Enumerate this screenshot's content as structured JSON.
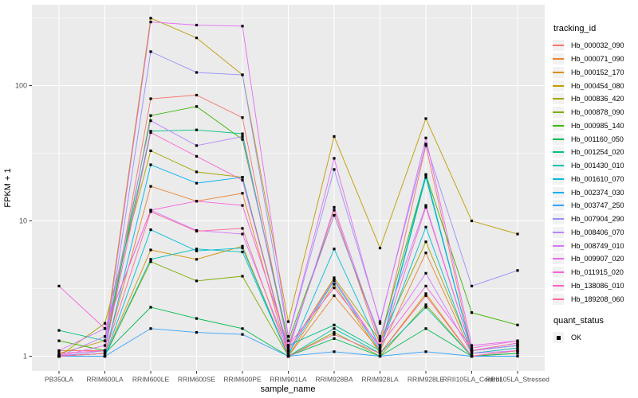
{
  "chart_data": {
    "type": "line",
    "title": "",
    "xlabel": "sample_name",
    "ylabel": "FPKM + 1",
    "x_categories": [
      "PB350LA",
      "RRIM600LA",
      "RRIM600LE",
      "RRIM600SE",
      "RRIM600PE",
      "RRIM901LA",
      "RRIM928BA",
      "RRIM928LA",
      "RRIM928LE",
      "RRII105LA_Control",
      "RRII105LA_Stressed"
    ],
    "y_scale": "log10",
    "y_ticks": [
      1,
      10,
      100
    ],
    "ylim": [
      0.95,
      380
    ],
    "grid": "on",
    "panel_bg": "#EBEBEB",
    "grid_color": "#FFFFFF",
    "tick_label_color": "#4D4D4D",
    "axis_title_color": "#000000",
    "point_shape": "filled-square",
    "point_color": "#000000",
    "legend_position": "right",
    "legend_title": "tracking_id",
    "legend2": {
      "title": "quant_status",
      "items": [
        "OK"
      ]
    },
    "series": [
      {
        "name": "Hb_000032_090",
        "color": "#F8766D",
        "values": [
          1.1,
          1.1,
          80,
          85,
          58,
          1.15,
          12,
          1.2,
          36,
          1.1,
          1.2
        ]
      },
      {
        "name": "Hb_000071_090",
        "color": "#EA8331",
        "values": [
          1.0,
          1.05,
          18,
          14,
          16,
          1.0,
          2.8,
          1.1,
          5.8,
          1.05,
          1.15
        ]
      },
      {
        "name": "Hb_000152_170",
        "color": "#D89000",
        "values": [
          1.0,
          1.0,
          6.1,
          5.2,
          6.5,
          1.0,
          3.4,
          1.05,
          2.9,
          1.0,
          1.1
        ]
      },
      {
        "name": "Hb_000454_080",
        "color": "#C09B00",
        "values": [
          1.05,
          1.3,
          315,
          225,
          120,
          1.8,
          42,
          6.3,
          57,
          10,
          8
        ]
      },
      {
        "name": "Hb_000836_420",
        "color": "#A3A500",
        "values": [
          1.0,
          1.75,
          33,
          23,
          21,
          1.1,
          3.8,
          1.3,
          7,
          1.1,
          1.25
        ]
      },
      {
        "name": "Hb_000878_090",
        "color": "#7CAE00",
        "values": [
          1.0,
          1.0,
          5.0,
          3.6,
          3.9,
          1.0,
          1.5,
          1.0,
          2.4,
          1.0,
          1.05
        ]
      },
      {
        "name": "Hb_000985_140",
        "color": "#39B600",
        "values": [
          1.3,
          1.1,
          60,
          70,
          40,
          1.3,
          11,
          1.35,
          22,
          2.1,
          1.7
        ]
      },
      {
        "name": "Hb_001160_050",
        "color": "#00BB4E",
        "values": [
          1.0,
          1.05,
          2.3,
          1.9,
          1.6,
          1.0,
          1.35,
          1.0,
          1.6,
          1.0,
          1.05
        ]
      },
      {
        "name": "Hb_001254_020",
        "color": "#00C087",
        "values": [
          1.55,
          1.3,
          46,
          47,
          44,
          1.2,
          1.7,
          1.1,
          21,
          1.1,
          1.2
        ]
      },
      {
        "name": "Hb_001430_010",
        "color": "#00C0B2",
        "values": [
          1.0,
          1.0,
          5.2,
          6.2,
          5.9,
          1.0,
          1.6,
          1.05,
          2.3,
          1.0,
          1.1
        ]
      },
      {
        "name": "Hb_001610_070",
        "color": "#00BCD8",
        "values": [
          1.0,
          1.0,
          8.6,
          6.0,
          6.3,
          1.0,
          6.2,
          1.15,
          9.0,
          1.05,
          1.15
        ]
      },
      {
        "name": "Hb_002374_030",
        "color": "#00B0F6",
        "values": [
          1.0,
          1.0,
          26,
          19,
          21,
          1.05,
          3.6,
          1.1,
          22,
          1.1,
          1.2
        ]
      },
      {
        "name": "Hb_003747_250",
        "color": "#35A2FF",
        "values": [
          1.0,
          1.0,
          1.6,
          1.5,
          1.45,
          1.0,
          1.08,
          1.0,
          1.08,
          1.0,
          1.0
        ]
      },
      {
        "name": "Hb_007904_290",
        "color": "#9590FF",
        "values": [
          1.0,
          1.1,
          178,
          125,
          120,
          1.4,
          24,
          1.8,
          37,
          3.3,
          4.3
        ]
      },
      {
        "name": "Hb_008406_070",
        "color": "#B983FF",
        "values": [
          1.0,
          1.4,
          55,
          36,
          42,
          1.2,
          11,
          1.4,
          13,
          1.1,
          1.2
        ]
      },
      {
        "name": "Hb_008749_010",
        "color": "#D376FF",
        "values": [
          1.1,
          1.6,
          12,
          8.5,
          8.0,
          1.1,
          12.6,
          1.3,
          4.1,
          1.05,
          1.1
        ]
      },
      {
        "name": "Hb_009907_020",
        "color": "#E76BF3",
        "values": [
          1.0,
          1.2,
          295,
          280,
          275,
          1.4,
          29,
          1.75,
          41,
          1.2,
          1.3
        ]
      },
      {
        "name": "Hb_011915_020",
        "color": "#F862DD",
        "values": [
          3.3,
          1.6,
          12,
          14,
          13,
          1.2,
          3.2,
          1.2,
          3.3,
          1.15,
          1.3
        ]
      },
      {
        "name": "Hb_138086_010",
        "color": "#FF61C7",
        "values": [
          1.05,
          1.1,
          45,
          30,
          20,
          1.1,
          3.7,
          1.15,
          12.6,
          1.1,
          1.25
        ]
      },
      {
        "name": "Hb_189208_060",
        "color": "#FF6A98",
        "values": [
          1.0,
          1.05,
          11.7,
          8.4,
          8.8,
          1.0,
          1.45,
          1.05,
          2.8,
          1.0,
          1.1
        ]
      }
    ]
  }
}
